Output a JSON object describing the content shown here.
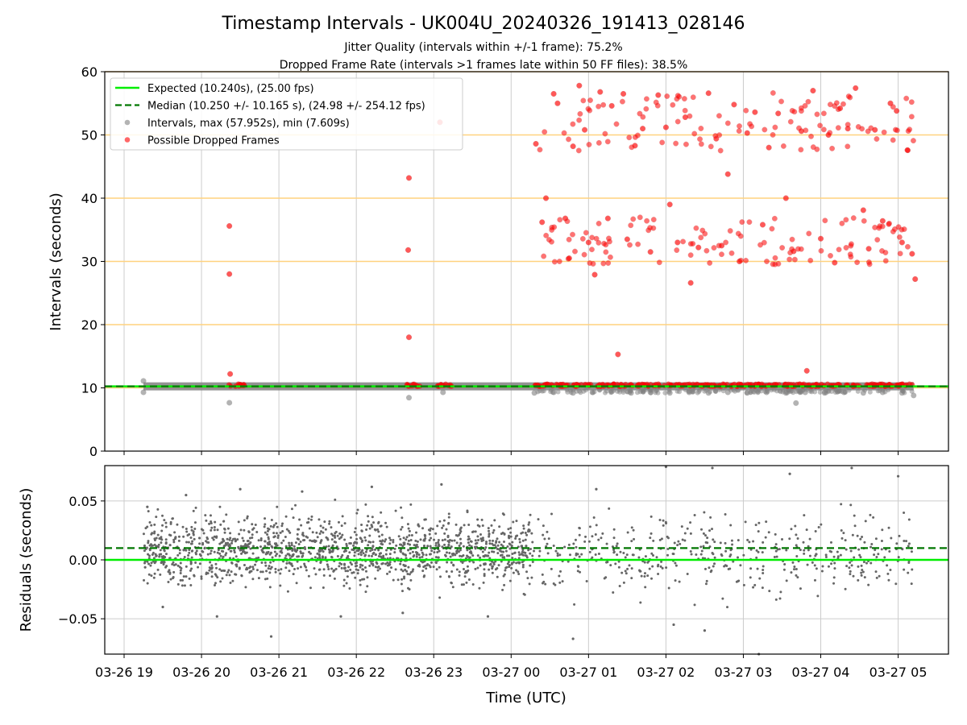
{
  "colors": {
    "expected": "#00ee00",
    "median": "#007700",
    "intervals": "#808080",
    "dropped": "#ff0000",
    "dropped_edge": "#cc3333",
    "band": "#ffd27f",
    "grid": "#cccccc",
    "residual": "#666666"
  },
  "chart_data": [
    {
      "type": "scatter",
      "title": "Timestamp Intervals - UK004U_20240326_191413_028146",
      "subtitle_lines": [
        "Jitter Quality (intervals within +/-1 frame): 75.2%",
        "Dropped Frame Rate (intervals >1 frames late within 50 FF files): 38.5%"
      ],
      "xlabel": "",
      "ylabel": "Intervals (seconds)",
      "xlim_hours": [
        18.75,
        29.65
      ],
      "ylim": [
        0,
        60
      ],
      "yticks": [
        0,
        10,
        20,
        30,
        40,
        50,
        60
      ],
      "grid": true,
      "horizontal_bands": [
        10,
        20,
        30,
        40,
        50,
        60
      ],
      "legend_position": "upper-left",
      "expected_value": 10.24,
      "median_value": 10.25,
      "legend": [
        {
          "key": "expected",
          "label": "Expected (10.240s), (25.00 fps)",
          "style": "line"
        },
        {
          "key": "median",
          "label": "Median (10.250 +/- 10.165 s), (24.98 +/- 254.12 fps)",
          "style": "dashed"
        },
        {
          "key": "intervals",
          "label": "Intervals, max (57.952s), min (7.609s)",
          "style": "dot-gray"
        },
        {
          "key": "dropped",
          "label": "Possible Dropped Frames",
          "style": "dot-red"
        }
      ],
      "series": [
        {
          "name": "Intervals, max (57.952s), min (7.609s)",
          "baseline_band": {
            "x_from": 19.25,
            "x_to": 29.2,
            "y": 10.24
          },
          "points": [
            {
              "x": 19.25,
              "y": 11.1
            },
            {
              "x": 19.25,
              "y": 9.3
            },
            {
              "x": 20.36,
              "y": 7.65
            },
            {
              "x": 22.68,
              "y": 8.45
            },
            {
              "x": 23.12,
              "y": 9.3
            },
            {
              "x": 24.3,
              "y": 9.2
            },
            {
              "x": 24.55,
              "y": 9.3
            },
            {
              "x": 24.8,
              "y": 9.2
            },
            {
              "x": 25.05,
              "y": 9.3
            },
            {
              "x": 25.3,
              "y": 9.4
            },
            {
              "x": 25.55,
              "y": 9.2
            },
            {
              "x": 25.8,
              "y": 9.3
            },
            {
              "x": 26.05,
              "y": 9.2
            },
            {
              "x": 26.3,
              "y": 9.3
            },
            {
              "x": 26.55,
              "y": 9.2
            },
            {
              "x": 26.8,
              "y": 9.3
            },
            {
              "x": 27.05,
              "y": 9.2
            },
            {
              "x": 27.3,
              "y": 9.3
            },
            {
              "x": 27.55,
              "y": 9.2
            },
            {
              "x": 27.68,
              "y": 7.6
            },
            {
              "x": 27.8,
              "y": 9.3
            },
            {
              "x": 28.05,
              "y": 9.2
            },
            {
              "x": 28.3,
              "y": 9.3
            },
            {
              "x": 28.55,
              "y": 9.2
            },
            {
              "x": 28.8,
              "y": 9.3
            },
            {
              "x": 29.05,
              "y": 9.2
            },
            {
              "x": 29.2,
              "y": 8.8
            }
          ]
        },
        {
          "name": "Possible Dropped Frames",
          "points": [
            {
              "x": 20.36,
              "y": 35.6
            },
            {
              "x": 20.36,
              "y": 28.0
            },
            {
              "x": 20.37,
              "y": 12.2
            },
            {
              "x": 22.68,
              "y": 43.2
            },
            {
              "x": 22.67,
              "y": 31.8
            },
            {
              "x": 22.68,
              "y": 18.0
            },
            {
              "x": 23.08,
              "y": 52.0
            },
            {
              "x": 24.32,
              "y": 48.6
            },
            {
              "x": 24.4,
              "y": 36.2
            },
            {
              "x": 24.45,
              "y": 40.0
            },
            {
              "x": 24.55,
              "y": 56.5
            },
            {
              "x": 24.6,
              "y": 55.0
            },
            {
              "x": 24.7,
              "y": 36.8
            },
            {
              "x": 24.75,
              "y": 30.5
            },
            {
              "x": 24.8,
              "y": 48.2
            },
            {
              "x": 24.88,
              "y": 57.8
            },
            {
              "x": 24.95,
              "y": 50.8
            },
            {
              "x": 25.0,
              "y": 33.0
            },
            {
              "x": 25.08,
              "y": 27.9
            },
            {
              "x": 25.15,
              "y": 56.8
            },
            {
              "x": 25.25,
              "y": 36.8
            },
            {
              "x": 25.3,
              "y": 54.6
            },
            {
              "x": 25.38,
              "y": 15.3
            },
            {
              "x": 25.45,
              "y": 56.5
            },
            {
              "x": 25.5,
              "y": 33.5
            },
            {
              "x": 25.6,
              "y": 48.3
            },
            {
              "x": 25.7,
              "y": 51.0
            },
            {
              "x": 25.8,
              "y": 31.5
            },
            {
              "x": 25.9,
              "y": 56.3
            },
            {
              "x": 26.0,
              "y": 51.2
            },
            {
              "x": 26.05,
              "y": 39.0
            },
            {
              "x": 26.15,
              "y": 33.0
            },
            {
              "x": 26.25,
              "y": 52.8
            },
            {
              "x": 26.32,
              "y": 26.6
            },
            {
              "x": 26.42,
              "y": 32.2
            },
            {
              "x": 26.55,
              "y": 56.6
            },
            {
              "x": 26.65,
              "y": 49.4
            },
            {
              "x": 26.72,
              "y": 32.5
            },
            {
              "x": 26.8,
              "y": 43.8
            },
            {
              "x": 26.88,
              "y": 54.8
            },
            {
              "x": 26.95,
              "y": 30.0
            },
            {
              "x": 27.05,
              "y": 50.3
            },
            {
              "x": 27.15,
              "y": 53.6
            },
            {
              "x": 27.25,
              "y": 35.8
            },
            {
              "x": 27.33,
              "y": 48.0
            },
            {
              "x": 27.45,
              "y": 53.4
            },
            {
              "x": 27.55,
              "y": 40.0
            },
            {
              "x": 27.65,
              "y": 31.6
            },
            {
              "x": 27.75,
              "y": 50.6
            },
            {
              "x": 27.82,
              "y": 12.7
            },
            {
              "x": 27.9,
              "y": 57.0
            },
            {
              "x": 28.0,
              "y": 33.6
            },
            {
              "x": 28.1,
              "y": 50.0
            },
            {
              "x": 28.18,
              "y": 29.8
            },
            {
              "x": 28.25,
              "y": 54.2
            },
            {
              "x": 28.35,
              "y": 51.0
            },
            {
              "x": 28.45,
              "y": 57.4
            },
            {
              "x": 28.55,
              "y": 38.1
            },
            {
              "x": 28.62,
              "y": 32.0
            },
            {
              "x": 28.7,
              "y": 50.8
            },
            {
              "x": 28.8,
              "y": 36.4
            },
            {
              "x": 28.9,
              "y": 55.0
            },
            {
              "x": 28.98,
              "y": 53.8
            },
            {
              "x": 29.05,
              "y": 33.0
            },
            {
              "x": 29.12,
              "y": 47.6
            },
            {
              "x": 29.18,
              "y": 31.2
            },
            {
              "x": 29.22,
              "y": 27.2
            }
          ]
        }
      ]
    },
    {
      "type": "scatter",
      "xlabel": "Time (UTC)",
      "ylabel": "Residuals (seconds)",
      "xlim_hours": [
        18.75,
        29.65
      ],
      "ylim": [
        -0.08,
        0.08
      ],
      "yticks": [
        {
          "value": 0.05,
          "label": "0.05"
        },
        {
          "value": 0.0,
          "label": "0.00"
        },
        {
          "value": -0.05,
          "label": "−0.05"
        }
      ],
      "xticks": [
        {
          "hour": 19,
          "label": "03-26 19"
        },
        {
          "hour": 20,
          "label": "03-26 20"
        },
        {
          "hour": 21,
          "label": "03-26 21"
        },
        {
          "hour": 22,
          "label": "03-26 22"
        },
        {
          "hour": 23,
          "label": "03-26 23"
        },
        {
          "hour": 24,
          "label": "03-27 00"
        },
        {
          "hour": 25,
          "label": "03-27 01"
        },
        {
          "hour": 26,
          "label": "03-27 02"
        },
        {
          "hour": 27,
          "label": "03-27 03"
        },
        {
          "hour": 28,
          "label": "03-27 04"
        },
        {
          "hour": 29,
          "label": "03-27 05"
        }
      ],
      "grid": true,
      "expected_value": 0.0,
      "median_value": 0.01,
      "series": [
        {
          "name": "Residuals",
          "points": [
            {
              "x": 19.3,
              "y": 0.045
            },
            {
              "x": 19.5,
              "y": -0.04
            },
            {
              "x": 19.8,
              "y": 0.055
            },
            {
              "x": 20.2,
              "y": -0.048
            },
            {
              "x": 20.5,
              "y": 0.06
            },
            {
              "x": 20.9,
              "y": -0.065
            },
            {
              "x": 21.3,
              "y": 0.058
            },
            {
              "x": 21.8,
              "y": -0.048
            },
            {
              "x": 22.2,
              "y": 0.062
            },
            {
              "x": 22.6,
              "y": -0.045
            },
            {
              "x": 23.1,
              "y": 0.064
            },
            {
              "x": 23.7,
              "y": -0.048
            },
            {
              "x": 24.8,
              "y": -0.067
            },
            {
              "x": 25.1,
              "y": 0.06
            },
            {
              "x": 26.0,
              "y": 0.079
            },
            {
              "x": 26.1,
              "y": -0.055
            },
            {
              "x": 26.5,
              "y": -0.06
            },
            {
              "x": 26.6,
              "y": 0.078
            },
            {
              "x": 27.2,
              "y": -0.08
            },
            {
              "x": 27.6,
              "y": 0.073
            },
            {
              "x": 28.4,
              "y": 0.078
            },
            {
              "x": 29.0,
              "y": 0.071
            }
          ]
        }
      ]
    }
  ]
}
